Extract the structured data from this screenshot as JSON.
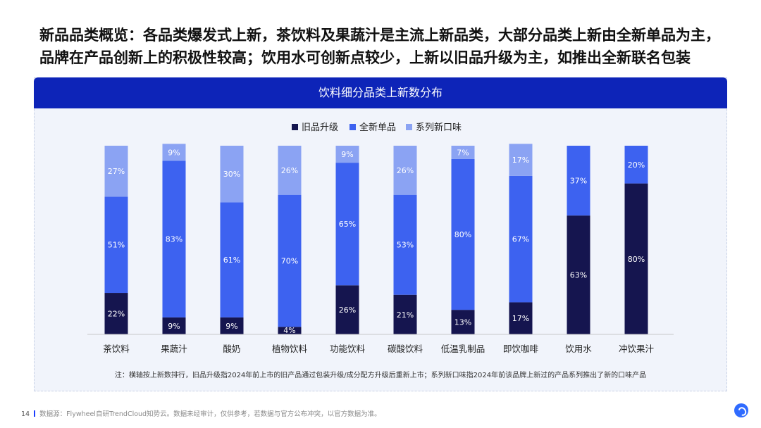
{
  "headline_line1": "新品品类概览：各品类爆发式上新，茶饮料及果蔬汁是主流上新品类，大部分品类上新由全新单品为主，",
  "headline_line2": "品牌在产品创新上的积极性较高；饮用水可创新点较少，上新以旧品升级为主，如推出全新联名包装",
  "chart_data": {
    "type": "bar",
    "stacked": true,
    "normalized": true,
    "title": "饮料细分品类上新数分布",
    "categories": [
      "茶饮料",
      "果蔬汁",
      "酸奶",
      "植物饮料",
      "功能饮料",
      "碳酸饮料",
      "低温乳制品",
      "即饮咖啡",
      "饮用水",
      "冲饮果汁"
    ],
    "series": [
      {
        "name": "旧品升级",
        "color": "#15154f",
        "values": [
          22,
          9,
          9,
          4,
          26,
          21,
          13,
          17,
          63,
          80
        ]
      },
      {
        "name": "全新单品",
        "color": "#3d62f0",
        "values": [
          51,
          83,
          61,
          70,
          65,
          53,
          80,
          67,
          37,
          20
        ]
      },
      {
        "name": "系列新口味",
        "color": "#8ba3f3",
        "values": [
          27,
          9,
          30,
          26,
          9,
          26,
          7,
          17,
          0,
          0
        ]
      }
    ],
    "value_suffix": "%",
    "ylim": [
      0,
      100
    ],
    "legend_position": "top-center",
    "grid": false
  },
  "note": "注：横轴按上新数排行，旧品升级指2024年前上市的旧产品通过包装升级/成分配方升级后重新上市；系列新口味指2024年前该品牌上新过的产品系列推出了新的口味产品",
  "footer": {
    "page_number": "14",
    "source": "数据源：Flywheel自研TrendCloud知势云。数据未经审计，仅供参考，若数据与官方公布冲突，以官方数据为准。"
  }
}
